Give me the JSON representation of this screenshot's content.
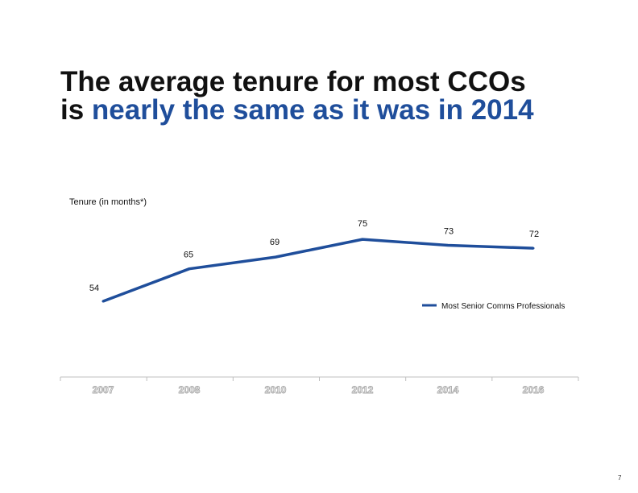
{
  "title": {
    "part1": "The average tenure for most CCOs is ",
    "part2": "nearly the same as it was in 2014"
  },
  "chart_data": {
    "type": "line",
    "title": "The average tenure for most CCOs is nearly the same as it was in 2014",
    "ylabel": "Tenure (in months*)",
    "categories": [
      "2007",
      "2008",
      "2010",
      "2012",
      "2014",
      "2016"
    ],
    "series": [
      {
        "name": "Most Senior Comms Professionals",
        "values": [
          54,
          65,
          69,
          75,
          73,
          72
        ]
      }
    ],
    "ylim": [
      40,
      80
    ],
    "legend": "right",
    "grid": false
  },
  "colors": {
    "line": "#1f4e9b",
    "title_accent": "#1f4e9b",
    "tick_label": "#a9a9a9"
  },
  "page_number": "7"
}
